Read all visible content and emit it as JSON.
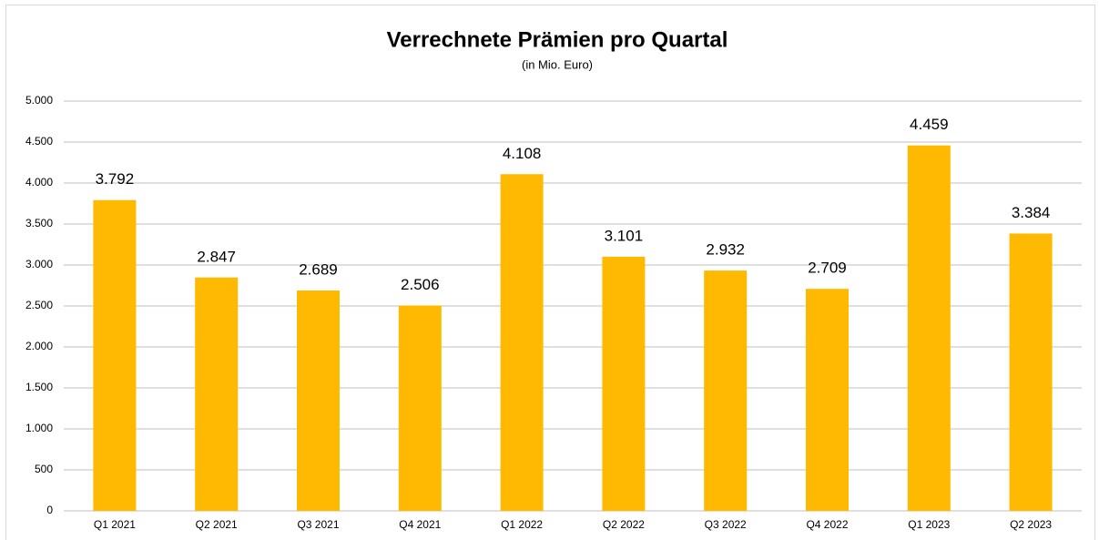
{
  "chart_data": {
    "type": "bar",
    "title": "Verrechnete Prämien pro Quartal",
    "subtitle": "(in Mio. Euro)",
    "categories": [
      "Q1 2021",
      "Q2 2021",
      "Q3 2021",
      "Q4 2021",
      "Q1 2022",
      "Q2 2022",
      "Q3 2022",
      "Q4 2022",
      "Q1 2023",
      "Q2 2023"
    ],
    "values": [
      3792,
      2847,
      2689,
      2506,
      4108,
      3101,
      2932,
      2709,
      4459,
      3384
    ],
    "value_labels": [
      "3.792",
      "2.847",
      "2.689",
      "2.506",
      "4.108",
      "3.101",
      "2.932",
      "2.709",
      "4.459",
      "3.384"
    ],
    "color": "#ffb900",
    "ylim": [
      0,
      5000
    ],
    "yticks": [
      0,
      500,
      {
        "value": 1000,
        "label": "1.000"
      },
      {
        "value": 1500,
        "label": "1.500"
      },
      {
        "value": 2000,
        "label": "2.000"
      },
      {
        "value": 2500,
        "label": "2.500"
      },
      {
        "value": 3000,
        "label": "3.000"
      },
      {
        "value": 3500,
        "label": "3.500"
      },
      {
        "value": 4000,
        "label": "4.000"
      },
      {
        "value": 4500,
        "label": "4.500"
      },
      {
        "value": 5000,
        "label": "5.000"
      }
    ],
    "grid": true
  }
}
